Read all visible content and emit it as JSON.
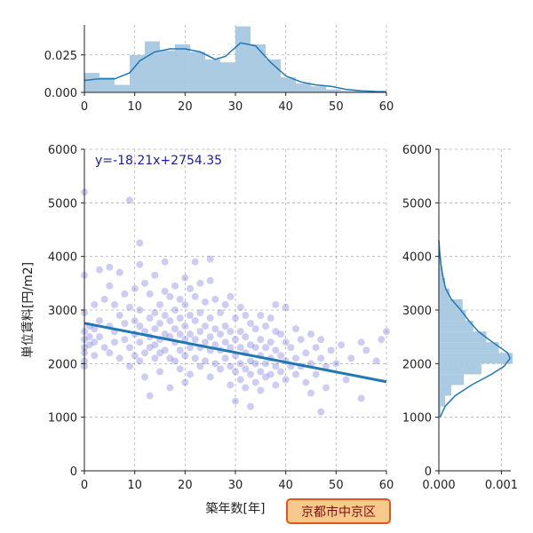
{
  "chart_data": [
    {
      "id": "scatter",
      "type": "scatter",
      "xlabel": "築年数[年]",
      "ylabel": "単位賃料[円/m2]",
      "xlim": [
        0,
        60
      ],
      "ylim": [
        0,
        6000
      ],
      "xticks": [
        0,
        10,
        20,
        30,
        40,
        50,
        60
      ],
      "yticks": [
        0,
        1000,
        2000,
        3000,
        4000,
        5000,
        6000
      ],
      "grid": true,
      "annotation": "y=-18.21x+2754.35",
      "regression": {
        "slope": -18.21,
        "intercept": 2754.35,
        "x_range": [
          0,
          60
        ]
      },
      "point_color": "#1a1acc",
      "line_color": "#1f77b4",
      "points": [
        [
          0,
          5200
        ],
        [
          0,
          3650
        ],
        [
          0,
          2950
        ],
        [
          0,
          2600
        ],
        [
          0,
          2450
        ],
        [
          0,
          2300
        ],
        [
          0,
          2200
        ],
        [
          0,
          2050
        ],
        [
          0,
          1950
        ],
        [
          1,
          2700
        ],
        [
          1,
          2500
        ],
        [
          1,
          2350
        ],
        [
          2,
          3100
        ],
        [
          2,
          2650
        ],
        [
          2,
          2400
        ],
        [
          2,
          2150
        ],
        [
          3,
          3750
        ],
        [
          3,
          2800
        ],
        [
          3,
          2500
        ],
        [
          4,
          3200
        ],
        [
          4,
          2300
        ],
        [
          5,
          3800
        ],
        [
          5,
          3450
        ],
        [
          5,
          2700
        ],
        [
          5,
          2200
        ],
        [
          6,
          3100
        ],
        [
          6,
          2600
        ],
        [
          6,
          2400
        ],
        [
          7,
          3700
        ],
        [
          7,
          2900
        ],
        [
          7,
          2100
        ],
        [
          8,
          3300
        ],
        [
          8,
          2750
        ],
        [
          8,
          2450
        ],
        [
          9,
          3050
        ],
        [
          9,
          2300
        ],
        [
          9,
          1950
        ],
        [
          9,
          5050
        ],
        [
          10,
          2800
        ],
        [
          10,
          2550
        ],
        [
          10,
          3400
        ],
        [
          10,
          2150
        ],
        [
          11,
          4250
        ],
        [
          11,
          3850
        ],
        [
          11,
          3000
        ],
        [
          11,
          2700
        ],
        [
          11,
          2400
        ],
        [
          11,
          2050
        ],
        [
          12,
          3500
        ],
        [
          12,
          2600
        ],
        [
          12,
          2200
        ],
        [
          12,
          1750
        ],
        [
          13,
          3300
        ],
        [
          13,
          2850
        ],
        [
          13,
          2500
        ],
        [
          13,
          2300
        ],
        [
          13,
          1400
        ],
        [
          14,
          3650
        ],
        [
          14,
          2950
        ],
        [
          14,
          2650
        ],
        [
          14,
          2350
        ],
        [
          14,
          2100
        ],
        [
          15,
          3100
        ],
        [
          15,
          2750
        ],
        [
          15,
          2450
        ],
        [
          15,
          2200
        ],
        [
          15,
          1850
        ],
        [
          16,
          3900
        ],
        [
          16,
          3350
        ],
        [
          16,
          2900
        ],
        [
          16,
          2550
        ],
        [
          16,
          2250
        ],
        [
          17,
          3250
        ],
        [
          17,
          2800
        ],
        [
          17,
          2500
        ],
        [
          17,
          2100
        ],
        [
          17,
          1550
        ],
        [
          18,
          3450
        ],
        [
          18,
          3000
        ],
        [
          18,
          2650
        ],
        [
          18,
          2400
        ],
        [
          18,
          2050
        ],
        [
          19,
          3200
        ],
        [
          19,
          2850
        ],
        [
          19,
          2550
        ],
        [
          19,
          2250
        ],
        [
          19,
          1900
        ],
        [
          20,
          3600
        ],
        [
          20,
          3100
        ],
        [
          20,
          2700
        ],
        [
          20,
          2450
        ],
        [
          20,
          2150
        ],
        [
          20,
          1650
        ],
        [
          21,
          3400
        ],
        [
          21,
          2900
        ],
        [
          21,
          2550
        ],
        [
          21,
          2300
        ],
        [
          21,
          1800
        ],
        [
          22,
          3900
        ],
        [
          22,
          3250
        ],
        [
          22,
          2800
        ],
        [
          22,
          2450
        ],
        [
          22,
          2100
        ],
        [
          23,
          3500
        ],
        [
          23,
          2950
        ],
        [
          23,
          2600
        ],
        [
          23,
          2300
        ],
        [
          23,
          1950
        ],
        [
          24,
          3150
        ],
        [
          24,
          2700
        ],
        [
          24,
          2400
        ],
        [
          24,
          2050
        ],
        [
          25,
          3950
        ],
        [
          25,
          3550
        ],
        [
          25,
          2850
        ],
        [
          25,
          2500
        ],
        [
          25,
          2250
        ],
        [
          25,
          1750
        ],
        [
          26,
          3200
        ],
        [
          26,
          2650
        ],
        [
          26,
          2350
        ],
        [
          26,
          2000
        ],
        [
          27,
          2950
        ],
        [
          27,
          2550
        ],
        [
          27,
          2250
        ],
        [
          27,
          1900
        ],
        [
          28,
          3100
        ],
        [
          28,
          2700
        ],
        [
          28,
          2400
        ],
        [
          28,
          2100
        ],
        [
          29,
          3250
        ],
        [
          29,
          2600
        ],
        [
          29,
          2300
        ],
        [
          29,
          1950
        ],
        [
          29,
          1600
        ],
        [
          30,
          2850
        ],
        [
          30,
          2450
        ],
        [
          30,
          2150
        ],
        [
          30,
          1850
        ],
        [
          30,
          1300
        ],
        [
          31,
          3050
        ],
        [
          31,
          2600
        ],
        [
          31,
          2300
        ],
        [
          31,
          2000
        ],
        [
          31,
          1700
        ],
        [
          32,
          2900
        ],
        [
          32,
          2500
        ],
        [
          32,
          2200
        ],
        [
          32,
          1900
        ],
        [
          32,
          1550
        ],
        [
          33,
          2750
        ],
        [
          33,
          2350
        ],
        [
          33,
          2050
        ],
        [
          33,
          1800
        ],
        [
          33,
          1200
        ],
        [
          34,
          2650
        ],
        [
          34,
          2300
        ],
        [
          34,
          2000
        ],
        [
          34,
          1650
        ],
        [
          35,
          2900
        ],
        [
          35,
          2450
        ],
        [
          35,
          2150
        ],
        [
          35,
          1850
        ],
        [
          35,
          1500
        ],
        [
          36,
          2700
        ],
        [
          36,
          2300
        ],
        [
          36,
          2000
        ],
        [
          36,
          1750
        ],
        [
          37,
          2850
        ],
        [
          37,
          2400
        ],
        [
          37,
          2100
        ],
        [
          37,
          1800
        ],
        [
          38,
          3100
        ],
        [
          38,
          2600
        ],
        [
          38,
          2250
        ],
        [
          38,
          1950
        ],
        [
          38,
          1600
        ],
        [
          39,
          2550
        ],
        [
          39,
          2150
        ],
        [
          39,
          1850
        ],
        [
          40,
          3050
        ],
        [
          40,
          2400
        ],
        [
          40,
          2050
        ],
        [
          40,
          1700
        ],
        [
          41,
          2300
        ],
        [
          41,
          1950
        ],
        [
          42,
          2650
        ],
        [
          42,
          2100
        ],
        [
          42,
          1800
        ],
        [
          43,
          2450
        ],
        [
          43,
          1950
        ],
        [
          44,
          2200
        ],
        [
          44,
          1650
        ],
        [
          45,
          2550
        ],
        [
          45,
          2000
        ],
        [
          45,
          1450
        ],
        [
          46,
          2300
        ],
        [
          46,
          1800
        ],
        [
          47,
          2450
        ],
        [
          47,
          2100
        ],
        [
          47,
          1100
        ],
        [
          48,
          1950
        ],
        [
          48,
          1550
        ],
        [
          49,
          2250
        ],
        [
          50,
          2000
        ],
        [
          51,
          2350
        ],
        [
          52,
          1700
        ],
        [
          53,
          2100
        ],
        [
          55,
          2400
        ],
        [
          55,
          1350
        ],
        [
          56,
          2250
        ],
        [
          58,
          2050
        ],
        [
          59,
          2450
        ],
        [
          60,
          2600
        ]
      ]
    },
    {
      "id": "x-marginal",
      "type": "histogram",
      "xlim": [
        0,
        60
      ],
      "ylim": [
        0,
        0.045
      ],
      "xticks": [
        0,
        10,
        20,
        30,
        40,
        50,
        60
      ],
      "yticks": [
        0.0,
        0.025
      ],
      "ytick_labels": [
        "0.000",
        "0.025"
      ],
      "grid": true,
      "bin_edges": [
        0,
        3,
        6,
        9,
        12,
        15,
        18,
        21,
        24,
        27,
        30,
        33,
        36,
        39,
        42,
        45,
        48,
        51,
        54,
        57,
        60
      ],
      "density": [
        0.013,
        0.01,
        0.005,
        0.025,
        0.034,
        0.028,
        0.032,
        0.027,
        0.022,
        0.02,
        0.044,
        0.032,
        0.022,
        0.01,
        0.006,
        0.004,
        0.002,
        0.001,
        0.001,
        0.0005
      ],
      "kde_x": [
        0,
        3,
        6,
        9,
        11,
        14,
        17,
        20,
        23,
        26,
        28,
        31,
        34,
        37,
        40,
        43,
        46,
        49,
        52,
        55,
        58,
        60
      ],
      "kde_y": [
        0.008,
        0.009,
        0.009,
        0.013,
        0.021,
        0.027,
        0.029,
        0.029,
        0.027,
        0.022,
        0.024,
        0.033,
        0.031,
        0.02,
        0.011,
        0.007,
        0.005,
        0.004,
        0.002,
        0.001,
        0.0006,
        0.0005
      ],
      "bar_color": "#a6c8e0",
      "kde_color": "#1f77b4"
    },
    {
      "id": "y-marginal",
      "type": "histogram",
      "orientation": "horizontal",
      "xlim": [
        0,
        0.00115
      ],
      "ylim": [
        0,
        6000
      ],
      "xticks": [
        0,
        0.001
      ],
      "xtick_labels": [
        "0.000",
        "0.001"
      ],
      "yticks": [
        0,
        1000,
        2000,
        3000,
        4000,
        5000,
        6000
      ],
      "grid": true,
      "bin_edges": [
        1000,
        1200,
        1400,
        1600,
        1800,
        2000,
        2200,
        2400,
        2600,
        2800,
        3000,
        3200,
        3400,
        3600,
        3800,
        4000,
        4200
      ],
      "density": [
        3e-05,
        0.0001,
        0.0002,
        0.0004,
        0.00068,
        0.00118,
        0.00096,
        0.00076,
        0.00055,
        0.00043,
        0.00038,
        0.00017,
        0.0001,
        6e-05,
        4e-05,
        2e-05
      ],
      "kde_y": [
        1000,
        1200,
        1400,
        1600,
        1800,
        1950,
        2100,
        2200,
        2300,
        2450,
        2600,
        2800,
        3000,
        3200,
        3400,
        3600,
        3800,
        4000,
        4300
      ],
      "kde_x": [
        2e-05,
        0.0001,
        0.00026,
        0.00052,
        0.00084,
        0.00104,
        0.00114,
        0.0011,
        0.00098,
        0.0008,
        0.00063,
        0.00048,
        0.00035,
        0.0002,
        0.00011,
        7e-05,
        4e-05,
        2e-05,
        0.0
      ],
      "bar_color": "#a6c8e0",
      "kde_color": "#1f77b4"
    }
  ],
  "badge": {
    "label": "京都市中京区"
  },
  "colors": {
    "badge_fill": "#f7c98a",
    "badge_border": "#e0561c"
  }
}
